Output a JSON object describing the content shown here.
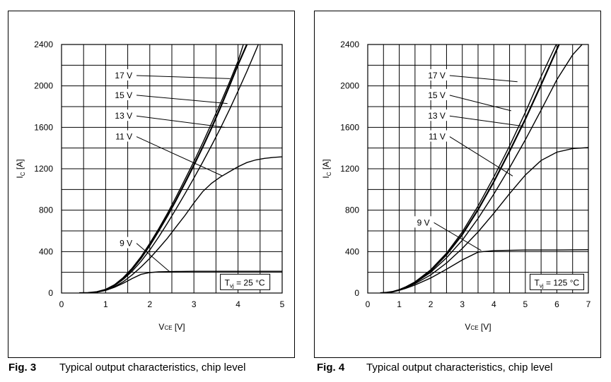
{
  "chart_data": [
    {
      "type": "line",
      "figure_label": "Fig. 3",
      "caption": "Typical output characteristics, chip level",
      "xlabel_main": "V",
      "xlabel_sub": "CE",
      "xlabel_unit": " [V]",
      "ylabel_main": "I",
      "ylabel_sub": "C",
      "ylabel_unit": " [A]",
      "xlim": [
        0,
        5
      ],
      "ylim": [
        0,
        2400
      ],
      "x_ticks": [
        0,
        1,
        2,
        3,
        4,
        5
      ],
      "y_ticks": [
        0,
        400,
        800,
        1200,
        1600,
        2000,
        2400
      ],
      "grid_x_step": 0.5,
      "grid_y_step": 200,
      "condition_main": "T",
      "condition_sub": "vj",
      "condition_rest": " = 25 °C",
      "series": [
        {
          "name": "17 V",
          "points": [
            [
              0.4,
              0
            ],
            [
              0.6,
              2
            ],
            [
              0.8,
              10
            ],
            [
              1.0,
              35
            ],
            [
              1.2,
              80
            ],
            [
              1.4,
              150
            ],
            [
              1.6,
              240
            ],
            [
              1.8,
              350
            ],
            [
              2.0,
              480
            ],
            [
              2.2,
              620
            ],
            [
              2.4,
              770
            ],
            [
              2.6,
              930
            ],
            [
              2.8,
              1100
            ],
            [
              3.0,
              1270
            ],
            [
              3.2,
              1450
            ],
            [
              3.4,
              1640
            ],
            [
              3.6,
              1830
            ],
            [
              3.8,
              2030
            ],
            [
              4.0,
              2240
            ],
            [
              4.12,
              2400
            ]
          ]
        },
        {
          "name": "15 V",
          "points": [
            [
              0.4,
              0
            ],
            [
              0.6,
              2
            ],
            [
              0.8,
              10
            ],
            [
              1.0,
              33
            ],
            [
              1.2,
              76
            ],
            [
              1.4,
              143
            ],
            [
              1.6,
              230
            ],
            [
              1.8,
              335
            ],
            [
              2.0,
              460
            ],
            [
              2.2,
              600
            ],
            [
              2.4,
              745
            ],
            [
              2.6,
              900
            ],
            [
              2.8,
              1065
            ],
            [
              3.0,
              1235
            ],
            [
              3.2,
              1410
            ],
            [
              3.4,
              1595
            ],
            [
              3.6,
              1790
            ],
            [
              3.8,
              1995
            ],
            [
              4.0,
              2205
            ],
            [
              4.2,
              2400
            ]
          ]
        },
        {
          "name": "13 V",
          "points": [
            [
              0.4,
              0
            ],
            [
              0.6,
              2
            ],
            [
              0.8,
              9
            ],
            [
              1.0,
              30
            ],
            [
              1.2,
              70
            ],
            [
              1.4,
              132
            ],
            [
              1.6,
              210
            ],
            [
              1.8,
              305
            ],
            [
              2.0,
              415
            ],
            [
              2.2,
              540
            ],
            [
              2.4,
              675
            ],
            [
              2.6,
              815
            ],
            [
              2.8,
              960
            ],
            [
              3.0,
              1110
            ],
            [
              3.2,
              1265
            ],
            [
              3.4,
              1425
            ],
            [
              3.6,
              1590
            ],
            [
              3.8,
              1765
            ],
            [
              4.0,
              1950
            ],
            [
              4.2,
              2140
            ],
            [
              4.4,
              2340
            ],
            [
              4.46,
              2400
            ]
          ]
        },
        {
          "name": "11 V",
          "points": [
            [
              0.4,
              0
            ],
            [
              0.6,
              2
            ],
            [
              0.8,
              8
            ],
            [
              1.0,
              27
            ],
            [
              1.2,
              60
            ],
            [
              1.4,
              110
            ],
            [
              1.6,
              175
            ],
            [
              1.8,
              250
            ],
            [
              2.0,
              335
            ],
            [
              2.2,
              430
            ],
            [
              2.4,
              530
            ],
            [
              2.6,
              640
            ],
            [
              2.8,
              750
            ],
            [
              3.0,
              870
            ],
            [
              3.2,
              980
            ],
            [
              3.4,
              1060
            ],
            [
              3.6,
              1120
            ],
            [
              3.8,
              1170
            ],
            [
              4.0,
              1220
            ],
            [
              4.2,
              1260
            ],
            [
              4.4,
              1285
            ],
            [
              4.6,
              1300
            ],
            [
              4.8,
              1310
            ],
            [
              5.0,
              1315
            ]
          ]
        },
        {
          "name": "9 V",
          "points": [
            [
              0.4,
              0
            ],
            [
              0.6,
              2
            ],
            [
              0.8,
              8
            ],
            [
              1.0,
              25
            ],
            [
              1.2,
              55
            ],
            [
              1.4,
              95
            ],
            [
              1.6,
              140
            ],
            [
              1.8,
              180
            ],
            [
              2.0,
              198
            ],
            [
              2.2,
              205
            ],
            [
              2.6,
              208
            ],
            [
              3.0,
              210
            ],
            [
              4.0,
              210
            ],
            [
              5.0,
              210
            ]
          ]
        }
      ],
      "label_points": [
        [
          1.7,
          2100
        ],
        [
          1.7,
          1910
        ],
        [
          1.7,
          1710
        ],
        [
          1.7,
          1510
        ],
        [
          1.7,
          480
        ]
      ],
      "label_targets": [
        [
          3.82,
          2070
        ],
        [
          3.76,
          1830
        ],
        [
          3.7,
          1600
        ],
        [
          3.65,
          1130
        ],
        [
          2.45,
          206
        ]
      ],
      "condition_box": {
        "x": 3.6,
        "y": 100
      }
    },
    {
      "type": "line",
      "figure_label": "Fig. 4",
      "caption": "Typical output characteristics, chip level",
      "xlabel_main": "V",
      "xlabel_sub": "CE",
      "xlabel_unit": " [V]",
      "ylabel_main": "I",
      "ylabel_sub": "C",
      "ylabel_unit": " [A]",
      "xlim": [
        0,
        7
      ],
      "ylim": [
        0,
        2400
      ],
      "x_ticks": [
        0,
        1,
        2,
        3,
        4,
        5,
        6,
        7
      ],
      "y_ticks": [
        0,
        400,
        800,
        1200,
        1600,
        2000,
        2400
      ],
      "grid_x_step": 0.5,
      "grid_y_step": 200,
      "condition_main": "T",
      "condition_sub": "vj",
      "condition_rest": " = 125 °C",
      "series": [
        {
          "name": "17 V",
          "points": [
            [
              0.4,
              0
            ],
            [
              0.6,
              4
            ],
            [
              0.8,
              14
            ],
            [
              1.0,
              32
            ],
            [
              1.2,
              58
            ],
            [
              1.5,
              108
            ],
            [
              2.0,
              225
            ],
            [
              2.5,
              385
            ],
            [
              3.0,
              590
            ],
            [
              3.5,
              840
            ],
            [
              4.0,
              1120
            ],
            [
              4.5,
              1420
            ],
            [
              5.0,
              1745
            ],
            [
              5.5,
              2090
            ],
            [
              5.98,
              2400
            ]
          ]
        },
        {
          "name": "15 V",
          "points": [
            [
              0.4,
              0
            ],
            [
              0.6,
              4
            ],
            [
              0.8,
              13
            ],
            [
              1.0,
              31
            ],
            [
              1.2,
              56
            ],
            [
              1.5,
              104
            ],
            [
              2.0,
              215
            ],
            [
              2.5,
              370
            ],
            [
              3.0,
              565
            ],
            [
              3.5,
              805
            ],
            [
              4.0,
              1075
            ],
            [
              4.5,
              1370
            ],
            [
              5.0,
              1680
            ],
            [
              5.5,
              2010
            ],
            [
              6.07,
              2400
            ]
          ]
        },
        {
          "name": "13 V",
          "points": [
            [
              0.4,
              0
            ],
            [
              0.6,
              4
            ],
            [
              0.8,
              13
            ],
            [
              1.0,
              30
            ],
            [
              1.2,
              54
            ],
            [
              1.5,
              98
            ],
            [
              2.0,
              200
            ],
            [
              2.5,
              340
            ],
            [
              3.0,
              510
            ],
            [
              3.5,
              720
            ],
            [
              4.0,
              955
            ],
            [
              4.5,
              1210
            ],
            [
              5.0,
              1480
            ],
            [
              5.5,
              1765
            ],
            [
              6.0,
              2060
            ],
            [
              6.5,
              2300
            ],
            [
              6.8,
              2400
            ]
          ]
        },
        {
          "name": "11 V",
          "points": [
            [
              0.4,
              0
            ],
            [
              0.6,
              4
            ],
            [
              0.8,
              12
            ],
            [
              1.0,
              28
            ],
            [
              1.2,
              50
            ],
            [
              1.5,
              90
            ],
            [
              2.0,
              175
            ],
            [
              2.5,
              290
            ],
            [
              3.0,
              430
            ],
            [
              3.5,
              590
            ],
            [
              4.0,
              770
            ],
            [
              4.5,
              960
            ],
            [
              5.0,
              1140
            ],
            [
              5.5,
              1280
            ],
            [
              6.0,
              1360
            ],
            [
              6.5,
              1395
            ],
            [
              7.0,
              1405
            ]
          ]
        },
        {
          "name": "9 V",
          "points": [
            [
              0.4,
              0
            ],
            [
              0.6,
              4
            ],
            [
              0.8,
              12
            ],
            [
              1.0,
              26
            ],
            [
              1.2,
              45
            ],
            [
              1.5,
              78
            ],
            [
              2.0,
              145
            ],
            [
              2.5,
              230
            ],
            [
              3.0,
              320
            ],
            [
              3.5,
              395
            ],
            [
              4.0,
              410
            ],
            [
              5.0,
              415
            ],
            [
              6.0,
              415
            ],
            [
              7.0,
              418
            ]
          ]
        }
      ],
      "label_points": [
        [
          2.6,
          2100
        ],
        [
          2.6,
          1910
        ],
        [
          2.6,
          1710
        ],
        [
          2.6,
          1510
        ],
        [
          2.1,
          680
        ]
      ],
      "label_targets": [
        [
          4.75,
          2040
        ],
        [
          4.55,
          1760
        ],
        [
          4.95,
          1610
        ],
        [
          4.6,
          1130
        ],
        [
          3.6,
          410
        ]
      ],
      "condition_box": {
        "x": 5.15,
        "y": 100
      }
    }
  ]
}
